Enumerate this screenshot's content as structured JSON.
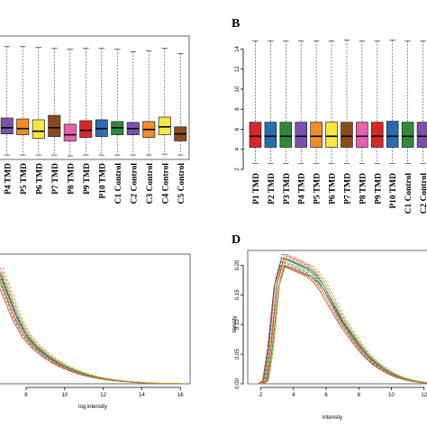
{
  "panels": {
    "A": {
      "type": "box",
      "letter": "",
      "categories": [
        "P4 TMD",
        "P5 TMD",
        "P6 TMD",
        "P7 TMD",
        "P8 TMD",
        "P9 TMD",
        "P10 TMD",
        "C1 Control",
        "C2 Control",
        "C3 Control",
        "C4 Control",
        "C5 Control"
      ],
      "colors": [
        "#7b52ab",
        "#f28c28",
        "#f4e842",
        "#8b4a1c",
        "#e75fb0",
        "#d62828",
        "#2b6cb0",
        "#2e8b3a",
        "#7b52ab",
        "#f28c28",
        "#f4e842",
        "#8b4a1c"
      ],
      "boxes": [
        {
          "low": 2.5,
          "q1": 4.9,
          "median": 5.6,
          "q3": 6.7,
          "high": 14.8
        },
        {
          "low": 2.5,
          "q1": 4.8,
          "median": 5.5,
          "q3": 6.6,
          "high": 14.8
        },
        {
          "low": 2.5,
          "q1": 4.4,
          "median": 5.2,
          "q3": 6.5,
          "high": 14.7
        },
        {
          "low": 2.5,
          "q1": 4.6,
          "median": 5.6,
          "q3": 7.0,
          "high": 14.6
        },
        {
          "low": 2.4,
          "q1": 4.1,
          "median": 4.8,
          "q3": 6.0,
          "high": 14.5
        },
        {
          "low": 2.5,
          "q1": 4.5,
          "median": 5.3,
          "q3": 6.4,
          "high": 14.6
        },
        {
          "low": 2.5,
          "q1": 4.6,
          "median": 5.5,
          "q3": 6.5,
          "high": 14.6
        },
        {
          "low": 2.5,
          "q1": 4.8,
          "median": 5.6,
          "q3": 6.3,
          "high": 14.5
        },
        {
          "low": 2.5,
          "q1": 4.8,
          "median": 5.5,
          "q3": 6.2,
          "high": 14.2
        },
        {
          "low": 2.5,
          "q1": 4.5,
          "median": 5.4,
          "q3": 6.3,
          "high": 14.3
        },
        {
          "low": 2.6,
          "q1": 4.8,
          "median": 5.7,
          "q3": 6.8,
          "high": 14.6
        },
        {
          "low": 2.5,
          "q1": 4.1,
          "median": 4.9,
          "q3": 5.7,
          "high": 14.0
        }
      ],
      "ylim": [
        2,
        16
      ]
    },
    "B": {
      "type": "box",
      "letter": "B",
      "categories": [
        "P1 TMD",
        "P2 TMD",
        "P3 TMD",
        "P4 TMD",
        "P5 TMD",
        "P6 TMD",
        "P7 TMD",
        "P8 TMD",
        "P9 TMD",
        "P10 TMD",
        "C1 Control",
        "C2 Control"
      ],
      "colors": [
        "#d62828",
        "#2b6cb0",
        "#2e8b3a",
        "#7b52ab",
        "#f28c28",
        "#f4e842",
        "#8b4a1c",
        "#e75fb0",
        "#d62828",
        "#2b6cb0",
        "#2e8b3a",
        "#7b52ab"
      ],
      "boxes": [
        {
          "low": 2.6,
          "q1": 4.2,
          "median": 5.3,
          "q3": 6.7,
          "high": 14.8
        },
        {
          "low": 2.6,
          "q1": 4.2,
          "median": 5.3,
          "q3": 6.7,
          "high": 14.8
        },
        {
          "low": 2.6,
          "q1": 4.2,
          "median": 5.3,
          "q3": 6.7,
          "high": 14.8
        },
        {
          "low": 2.6,
          "q1": 4.2,
          "median": 5.3,
          "q3": 6.7,
          "high": 14.8
        },
        {
          "low": 2.6,
          "q1": 4.2,
          "median": 5.3,
          "q3": 6.7,
          "high": 14.8
        },
        {
          "low": 2.6,
          "q1": 4.2,
          "median": 5.3,
          "q3": 6.7,
          "high": 14.8
        },
        {
          "low": 2.6,
          "q1": 4.2,
          "median": 5.3,
          "q3": 6.7,
          "high": 14.9
        },
        {
          "low": 2.6,
          "q1": 4.2,
          "median": 5.3,
          "q3": 6.7,
          "high": 14.8
        },
        {
          "low": 2.6,
          "q1": 4.2,
          "median": 5.3,
          "q3": 6.7,
          "high": 14.8
        },
        {
          "low": 2.6,
          "q1": 4.2,
          "median": 5.3,
          "q3": 6.8,
          "high": 14.9
        },
        {
          "low": 2.6,
          "q1": 4.2,
          "median": 5.3,
          "q3": 6.7,
          "high": 14.8
        },
        {
          "low": 2.6,
          "q1": 4.2,
          "median": 5.3,
          "q3": 6.7,
          "high": 14.8
        }
      ],
      "yticks": [
        2,
        4,
        6,
        8,
        10,
        12,
        14
      ],
      "ylim": [
        2,
        15.3
      ]
    },
    "C": {
      "type": "line",
      "letter": "",
      "xlabel": "log intensity",
      "xticks": [
        8,
        10,
        12,
        14,
        16
      ],
      "xlim": [
        6.6,
        16.5
      ],
      "ylim": [
        0,
        0.35
      ],
      "colors": [
        "#d62828",
        "#2b6cb0",
        "#2e8b3a",
        "#7b52ab",
        "#f28c28",
        "#e6c200",
        "#8b4a1c",
        "#e75fb0",
        "#555555",
        "#17becf",
        "#9acd32",
        "#ff7f0e"
      ],
      "base_x": [
        6.6,
        6.9,
        7.2,
        7.5,
        7.8,
        8.0,
        8.5,
        9.0,
        9.5,
        10.0,
        10.5,
        11.0,
        11.5,
        12.0,
        12.5,
        13.0,
        13.5,
        14.0,
        15.0,
        16.0
      ],
      "base_y": [
        0.3,
        0.26,
        0.22,
        0.18,
        0.15,
        0.13,
        0.1,
        0.078,
        0.06,
        0.046,
        0.035,
        0.026,
        0.019,
        0.014,
        0.01,
        0.007,
        0.005,
        0.003,
        0.001,
        0.0005
      ]
    },
    "D": {
      "type": "line",
      "letter": "D",
      "xlabel": "intensity",
      "ylabel": "density",
      "xticks": [
        2,
        4,
        6,
        8,
        10,
        12
      ],
      "yticks": [
        0.0,
        0.05,
        0.1,
        0.15,
        0.2
      ],
      "ytick_labels": [
        "0.00",
        "0.05",
        "0.10",
        "0.15",
        "0.20"
      ],
      "xlim": [
        1.2,
        12.4
      ],
      "ylim": [
        0,
        0.225
      ],
      "colors": [
        "#d62828",
        "#2b6cb0",
        "#2e8b3a",
        "#7b52ab",
        "#f28c28",
        "#e6c200",
        "#8b4a1c",
        "#e75fb0",
        "#555555",
        "#17becf",
        "#9acd32",
        "#ff7f0e"
      ],
      "base_x": [
        1.2,
        2.0,
        2.3,
        2.6,
        3.0,
        3.4,
        3.8,
        4.2,
        4.6,
        5.0,
        5.4,
        5.8,
        6.2,
        6.6,
        7.0,
        7.5,
        8.0,
        8.5,
        9.0,
        9.5,
        10.0,
        10.5,
        11.0,
        11.5,
        12.0,
        12.4
      ],
      "base_y": [
        0.0,
        0.0,
        0.005,
        0.06,
        0.17,
        0.209,
        0.205,
        0.2,
        0.195,
        0.19,
        0.18,
        0.165,
        0.145,
        0.125,
        0.105,
        0.085,
        0.065,
        0.048,
        0.035,
        0.025,
        0.017,
        0.011,
        0.007,
        0.004,
        0.002,
        0.001
      ]
    }
  }
}
